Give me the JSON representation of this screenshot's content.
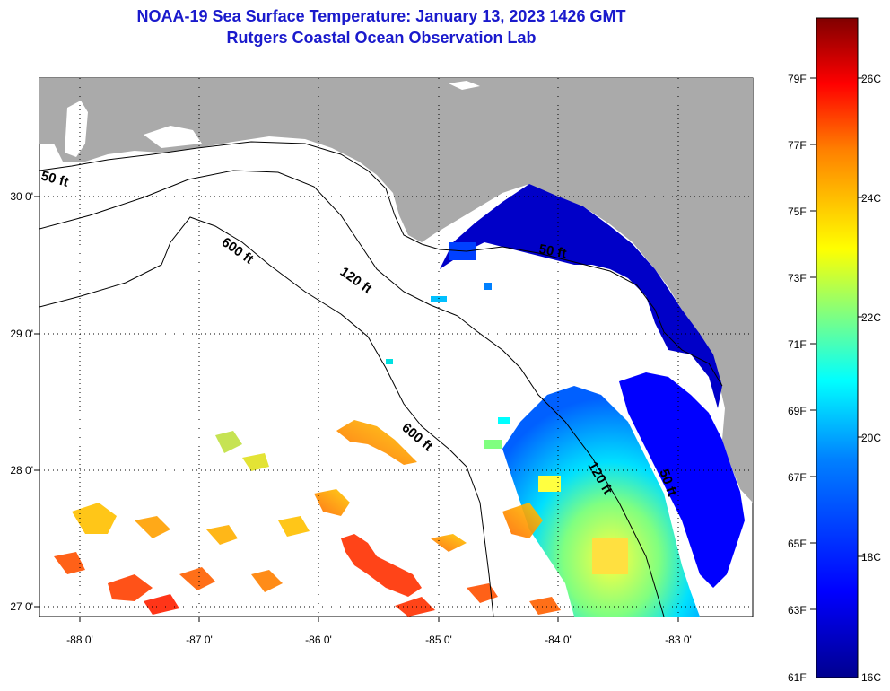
{
  "title": {
    "line1": "NOAA-19 Sea Surface Temperature:  January 13, 2023 1426 GMT",
    "line2": "Rutgers Coastal Ocean Observation Lab"
  },
  "map": {
    "lat_labels": [
      "30 0'",
      "29 0'",
      "28 0'",
      "27 0'"
    ],
    "lon_labels": [
      "-88 0'",
      "-87 0'",
      "-86 0'",
      "-85 0'",
      "-84 0'",
      "-83 0'"
    ],
    "contour_labels": {
      "c50_left": "50 ft",
      "c50_right": "50 ft",
      "c120_upper": "120 ft",
      "c120_lower": "120 ft",
      "c600_upper": "600 ft",
      "c600_lower": "600 ft",
      "c50_fl": "50 ft"
    }
  },
  "colorbar": {
    "f_labels": [
      "79F",
      "77F",
      "75F",
      "73F",
      "71F",
      "69F",
      "67F",
      "65F",
      "63F",
      "61F"
    ],
    "c_labels": [
      "26C",
      "24C",
      "22C",
      "20C",
      "18C",
      "16C"
    ],
    "colors": [
      "#800000",
      "#ff0000",
      "#ff8000",
      "#ffff00",
      "#80ff80",
      "#00ffff",
      "#0080ff",
      "#0000ff",
      "#00008f"
    ]
  }
}
